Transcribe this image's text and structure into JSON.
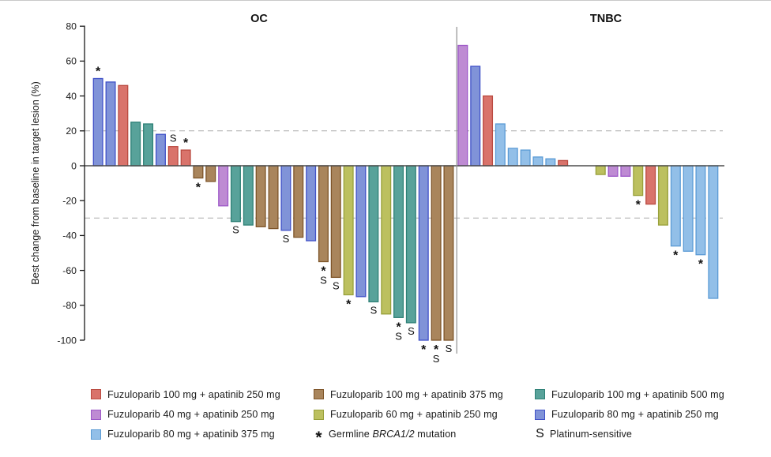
{
  "chart_data": {
    "type": "bar",
    "title": "",
    "ylabel": "Best change from baseline in target lesion (%)",
    "ylim": [
      -100,
      80
    ],
    "yticks": [
      80,
      60,
      40,
      20,
      0,
      -20,
      -40,
      -60,
      -80,
      -100
    ],
    "reference_lines": [
      20,
      -30
    ],
    "legend_position": "bottom",
    "groups": {
      "red": {
        "label": "Fuzuloparib 100 mg + apatinib 250 mg",
        "fill": "#d9736b",
        "stroke": "#ba4a40"
      },
      "purple": {
        "label": "Fuzuloparib 40 mg + apatinib 250 mg",
        "fill": "#be8bd3",
        "stroke": "#9d58c8"
      },
      "lightblue": {
        "label": "Fuzuloparib 80 mg + apatinib 375 mg",
        "fill": "#92bfe8",
        "stroke": "#5b9bd5"
      },
      "brown": {
        "label": "Fuzuloparib 100 mg + apatinib 375 mg",
        "fill": "#a9855c",
        "stroke": "#7e5529"
      },
      "olive": {
        "label": "Fuzuloparib 60 mg + apatinib 250 mg",
        "fill": "#bcc05f",
        "stroke": "#98a03a"
      },
      "teal": {
        "label": "Fuzuloparib 100 mg + apatinib 500 mg",
        "fill": "#58a29a",
        "stroke": "#2e8076"
      },
      "indigo": {
        "label": "Fuzuloparib 80 mg + apatinib 250 mg",
        "fill": "#8093d8",
        "stroke": "#4152c8"
      }
    },
    "marker_meanings": {
      "*": "Germline BRCA1/2 mutation",
      "S": "Platinum-sensitive"
    },
    "panels": [
      {
        "title": "OC",
        "bars": [
          {
            "v": 50,
            "c": "indigo",
            "m": [
              "*"
            ]
          },
          {
            "v": 48,
            "c": "indigo",
            "m": []
          },
          {
            "v": 46,
            "c": "red",
            "m": []
          },
          {
            "v": 25,
            "c": "teal",
            "m": []
          },
          {
            "v": 24,
            "c": "teal",
            "m": []
          },
          {
            "v": 18,
            "c": "indigo",
            "m": []
          },
          {
            "v": 11,
            "c": "red",
            "m": [
              "S"
            ]
          },
          {
            "v": 9,
            "c": "red",
            "m": [
              "*"
            ]
          },
          {
            "v": -7,
            "c": "brown",
            "m": [
              "*"
            ]
          },
          {
            "v": -9,
            "c": "brown",
            "m": []
          },
          {
            "v": -23,
            "c": "purple",
            "m": []
          },
          {
            "v": -32,
            "c": "teal",
            "m": [
              "S"
            ]
          },
          {
            "v": -34,
            "c": "teal",
            "m": []
          },
          {
            "v": -35,
            "c": "brown",
            "m": []
          },
          {
            "v": -36,
            "c": "brown",
            "m": []
          },
          {
            "v": -37,
            "c": "indigo",
            "m": [
              "S"
            ]
          },
          {
            "v": -41,
            "c": "brown",
            "m": []
          },
          {
            "v": -43,
            "c": "indigo",
            "m": []
          },
          {
            "v": -55,
            "c": "brown",
            "m": [
              "*",
              "S"
            ]
          },
          {
            "v": -64,
            "c": "brown",
            "m": [
              "S"
            ]
          },
          {
            "v": -74,
            "c": "olive",
            "m": [
              "*"
            ]
          },
          {
            "v": -75,
            "c": "indigo",
            "m": []
          },
          {
            "v": -78,
            "c": "teal",
            "m": [
              "S"
            ]
          },
          {
            "v": -85,
            "c": "olive",
            "m": []
          },
          {
            "v": -87,
            "c": "teal",
            "m": [
              "*",
              "S"
            ]
          },
          {
            "v": -90,
            "c": "teal",
            "m": [
              "S"
            ]
          },
          {
            "v": -100,
            "c": "indigo",
            "m": [
              "*"
            ]
          },
          {
            "v": -100,
            "c": "brown",
            "m": [
              "*",
              "S"
            ]
          },
          {
            "v": -100,
            "c": "brown",
            "m": [
              "S"
            ]
          }
        ]
      },
      {
        "title": "TNBC",
        "gap_after_index": 8,
        "gap_slots": 2,
        "bars": [
          {
            "v": 69,
            "c": "purple",
            "m": []
          },
          {
            "v": 57,
            "c": "indigo",
            "m": []
          },
          {
            "v": 40,
            "c": "red",
            "m": []
          },
          {
            "v": 24,
            "c": "lightblue",
            "m": []
          },
          {
            "v": 10,
            "c": "lightblue",
            "m": []
          },
          {
            "v": 9,
            "c": "lightblue",
            "m": []
          },
          {
            "v": 5,
            "c": "lightblue",
            "m": []
          },
          {
            "v": 4,
            "c": "lightblue",
            "m": []
          },
          {
            "v": 3,
            "c": "red",
            "m": []
          },
          {
            "v": -5,
            "c": "olive",
            "m": []
          },
          {
            "v": -6,
            "c": "purple",
            "m": []
          },
          {
            "v": -6,
            "c": "purple",
            "m": []
          },
          {
            "v": -17,
            "c": "olive",
            "m": [
              "*"
            ]
          },
          {
            "v": -22,
            "c": "red",
            "m": []
          },
          {
            "v": -34,
            "c": "olive",
            "m": []
          },
          {
            "v": -46,
            "c": "lightblue",
            "m": [
              "*"
            ]
          },
          {
            "v": -49,
            "c": "lightblue",
            "m": []
          },
          {
            "v": -51,
            "c": "lightblue",
            "m": [
              "*"
            ]
          },
          {
            "v": -76,
            "c": "lightblue",
            "m": []
          }
        ]
      }
    ]
  },
  "legend": {
    "columns": [
      [
        {
          "swatch": "red"
        },
        {
          "swatch": "purple"
        },
        {
          "swatch": "lightblue"
        }
      ],
      [
        {
          "swatch": "brown"
        },
        {
          "swatch": "olive"
        },
        {
          "symbol": "*",
          "parts": [
            {
              "t": "Germline "
            },
            {
              "t": "BRCA1/2",
              "i": true
            },
            {
              "t": " mutation"
            }
          ]
        }
      ],
      [
        {
          "swatch": "teal"
        },
        {
          "swatch": "indigo"
        },
        {
          "symbol": "S",
          "parts": [
            {
              "t": "Platinum-sensitive"
            }
          ]
        }
      ]
    ]
  }
}
